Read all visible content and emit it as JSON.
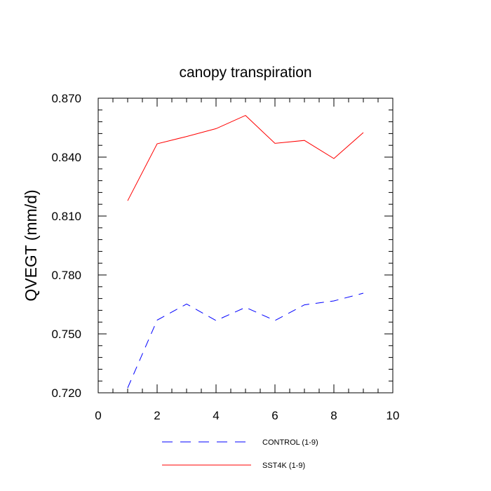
{
  "chart_data": {
    "type": "line",
    "title": "canopy transpiration",
    "ylabel": "QVEGT  (mm/d)",
    "xlabel": "",
    "xlim": [
      0,
      10
    ],
    "ylim": [
      0.72,
      0.87
    ],
    "x_ticks": [
      0,
      2,
      4,
      6,
      8,
      10
    ],
    "x_tick_labels": [
      "0",
      "2",
      "4",
      "6",
      "8",
      "10"
    ],
    "y_ticks": [
      0.72,
      0.75,
      0.78,
      0.81,
      0.84,
      0.87
    ],
    "y_tick_labels": [
      "0.720",
      "0.750",
      "0.780",
      "0.810",
      "0.840",
      "0.870"
    ],
    "grid": false,
    "legend_position": "bottom",
    "series": [
      {
        "name": "CONTROL (1-9)",
        "color": "#0000ff",
        "style": "dashed",
        "x": [
          1,
          2,
          3,
          4,
          5,
          6,
          7,
          8,
          9
        ],
        "y": [
          0.7225,
          0.757,
          0.7652,
          0.7568,
          0.7635,
          0.7568,
          0.7648,
          0.7668,
          0.7707
        ]
      },
      {
        "name": "SST4K (1-9)",
        "color": "#ff0000",
        "style": "solid",
        "x": [
          1,
          2,
          3,
          4,
          5,
          6,
          7,
          8,
          9
        ],
        "y": [
          0.8178,
          0.8468,
          0.8505,
          0.8545,
          0.8612,
          0.847,
          0.8485,
          0.8393,
          0.8525
        ]
      }
    ]
  }
}
